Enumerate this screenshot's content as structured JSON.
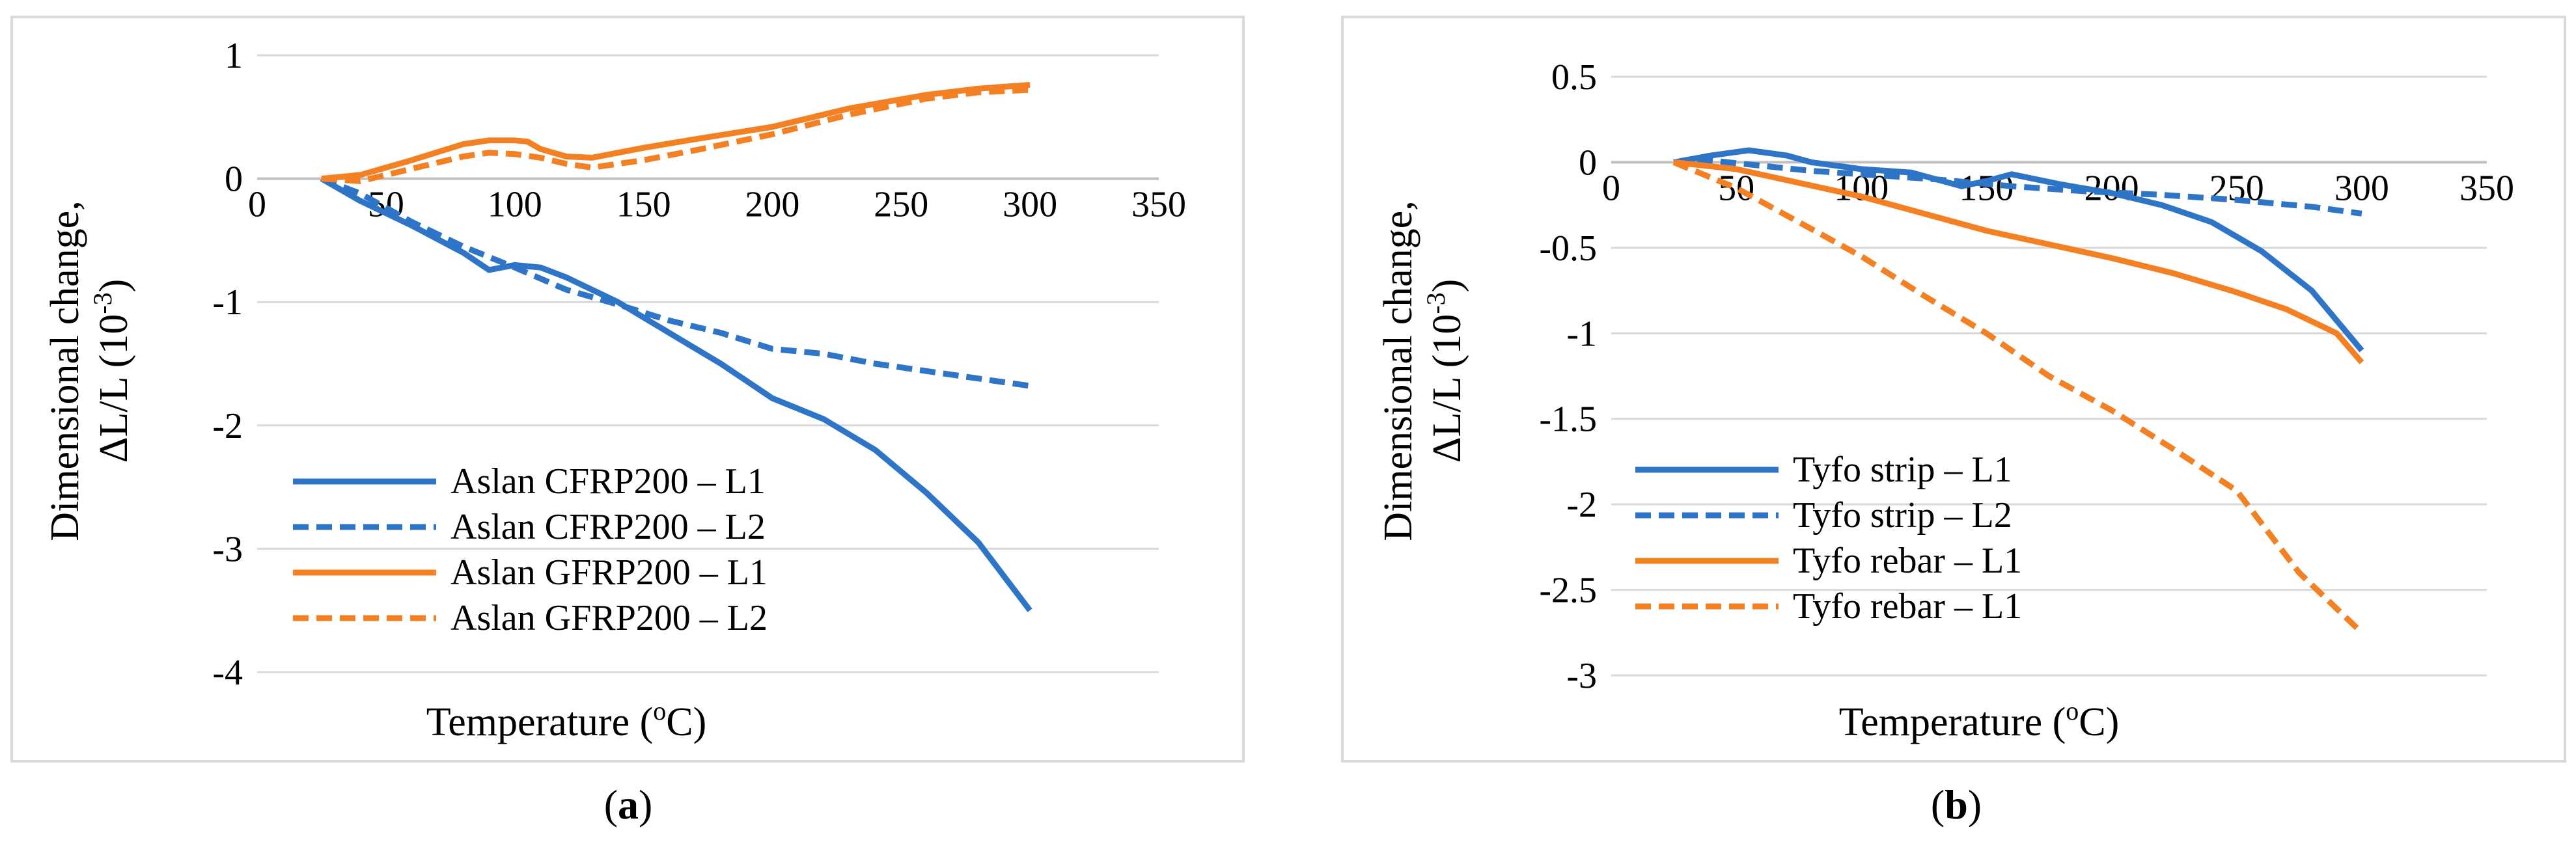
{
  "chart_data": [
    {
      "type": "line",
      "panel_label": "a",
      "xlabel_main": "Temperature (",
      "xlabel_sup": "o",
      "xlabel_tail": "C)",
      "ylabel_line1": "Dimensional change,",
      "ylabel_line2_main": "ΔL/L (10",
      "ylabel_sup": "-3",
      "ylabel_line2_tail": ")",
      "xlim": [
        0,
        350
      ],
      "ylim": [
        -4,
        1
      ],
      "xticks": [
        0,
        50,
        100,
        150,
        200,
        250,
        300,
        350
      ],
      "yticks": [
        -4,
        -3,
        -2,
        -1,
        0,
        1
      ],
      "legend_position": "lower-left",
      "series": [
        {
          "name": "Aslan CFRP200 – L1",
          "color": "#2E75C8",
          "dash": "solid",
          "x": [
            25,
            40,
            60,
            80,
            90,
            100,
            110,
            120,
            140,
            160,
            180,
            200,
            220,
            240,
            260,
            280,
            300
          ],
          "y": [
            0,
            -0.18,
            -0.38,
            -0.6,
            -0.74,
            -0.7,
            -0.72,
            -0.8,
            -1.0,
            -1.25,
            -1.5,
            -1.78,
            -1.95,
            -2.2,
            -2.55,
            -2.95,
            -3.5
          ]
        },
        {
          "name": "Aslan CFRP200 – L2",
          "color": "#2E75C8",
          "dash": "dashed",
          "x": [
            25,
            40,
            60,
            80,
            100,
            120,
            140,
            160,
            180,
            200,
            220,
            240,
            260,
            280,
            300
          ],
          "y": [
            0,
            -0.12,
            -0.35,
            -0.55,
            -0.72,
            -0.9,
            -1.02,
            -1.15,
            -1.25,
            -1.38,
            -1.42,
            -1.5,
            -1.56,
            -1.62,
            -1.68
          ]
        },
        {
          "name": "Aslan GFRP200 – L1",
          "color": "#F48024",
          "dash": "solid",
          "x": [
            25,
            40,
            60,
            80,
            90,
            100,
            105,
            110,
            120,
            130,
            150,
            170,
            200,
            230,
            260,
            280,
            300
          ],
          "y": [
            0,
            0.03,
            0.15,
            0.28,
            0.31,
            0.31,
            0.3,
            0.24,
            0.18,
            0.17,
            0.25,
            0.32,
            0.42,
            0.57,
            0.68,
            0.73,
            0.76
          ]
        },
        {
          "name": "Aslan GFRP200 – L2",
          "color": "#F48024",
          "dash": "dashed",
          "x": [
            25,
            40,
            60,
            80,
            90,
            100,
            110,
            120,
            130,
            150,
            170,
            200,
            230,
            260,
            280,
            300
          ],
          "y": [
            0,
            -0.02,
            0.08,
            0.18,
            0.21,
            0.2,
            0.17,
            0.12,
            0.09,
            0.15,
            0.23,
            0.36,
            0.52,
            0.65,
            0.7,
            0.72
          ]
        }
      ]
    },
    {
      "type": "line",
      "panel_label": "b",
      "xlabel_main": "Temperature (",
      "xlabel_sup": "o",
      "xlabel_tail": "C)",
      "ylabel_line1": "Dimensional change,",
      "ylabel_line2_main": "ΔL/L (10",
      "ylabel_sup": "-3",
      "ylabel_line2_tail": ")",
      "xlim": [
        0,
        350
      ],
      "ylim": [
        -3,
        0.5
      ],
      "xticks": [
        0,
        50,
        100,
        150,
        200,
        250,
        300,
        350
      ],
      "yticks": [
        -3,
        -2.5,
        -2,
        -1.5,
        -1,
        -0.5,
        0,
        0.5
      ],
      "legend_position": "lower-left",
      "series": [
        {
          "name": "Tyfo strip – L1",
          "color": "#2E75C8",
          "dash": "solid",
          "x": [
            25,
            40,
            55,
            70,
            80,
            100,
            120,
            140,
            150,
            160,
            180,
            200,
            220,
            240,
            260,
            280,
            300
          ],
          "y": [
            0,
            0.04,
            0.07,
            0.04,
            0.0,
            -0.04,
            -0.06,
            -0.14,
            -0.11,
            -0.07,
            -0.13,
            -0.18,
            -0.25,
            -0.35,
            -0.52,
            -0.75,
            -1.1
          ]
        },
        {
          "name": "Tyfo strip – L2",
          "color": "#2E75C8",
          "dash": "dashed",
          "x": [
            25,
            40,
            60,
            80,
            100,
            130,
            160,
            190,
            220,
            250,
            280,
            300
          ],
          "y": [
            0,
            0.01,
            -0.02,
            -0.05,
            -0.07,
            -0.1,
            -0.14,
            -0.17,
            -0.19,
            -0.22,
            -0.26,
            -0.3
          ]
        },
        {
          "name": "Tyfo rebar – L1",
          "color": "#F48024",
          "dash": "solid",
          "x": [
            25,
            50,
            75,
            100,
            125,
            150,
            175,
            200,
            225,
            250,
            270,
            290,
            300
          ],
          "y": [
            0,
            -0.04,
            -0.12,
            -0.2,
            -0.3,
            -0.4,
            -0.48,
            -0.56,
            -0.65,
            -0.76,
            -0.86,
            -1.0,
            -1.17
          ]
        },
        {
          "name": "Tyfo rebar – L1",
          "color": "#F48024",
          "dash": "dashed",
          "x": [
            25,
            50,
            75,
            100,
            125,
            150,
            175,
            200,
            225,
            250,
            275,
            300
          ],
          "y": [
            0,
            -0.15,
            -0.35,
            -0.55,
            -0.78,
            -1.0,
            -1.25,
            -1.45,
            -1.68,
            -1.92,
            -2.4,
            -2.75
          ]
        }
      ]
    }
  ]
}
